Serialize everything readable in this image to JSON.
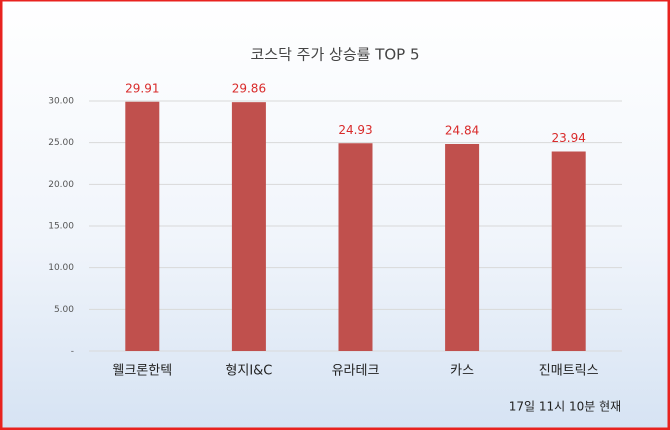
{
  "chart_data": {
    "type": "bar",
    "title": "코스닥 주가 상승률 TOP 5",
    "categories": [
      "웰크론한텍",
      "형지I&C",
      "유라테크",
      "카스",
      "진매트릭스"
    ],
    "values": [
      29.91,
      29.86,
      24.93,
      24.84,
      23.94
    ],
    "color": "#c0504d",
    "ylim": [
      0,
      30
    ],
    "yticks": [
      {
        "value": 0,
        "label": "-"
      },
      {
        "value": 5,
        "label": "5.00"
      },
      {
        "value": 10,
        "label": "10.00"
      },
      {
        "value": 15,
        "label": "15.00"
      },
      {
        "value": 20,
        "label": "20.00"
      },
      {
        "value": 25,
        "label": "25.00"
      },
      {
        "value": 30,
        "label": "30.00"
      }
    ],
    "grid": true,
    "annotation": "17일 11시 10분 현재"
  }
}
